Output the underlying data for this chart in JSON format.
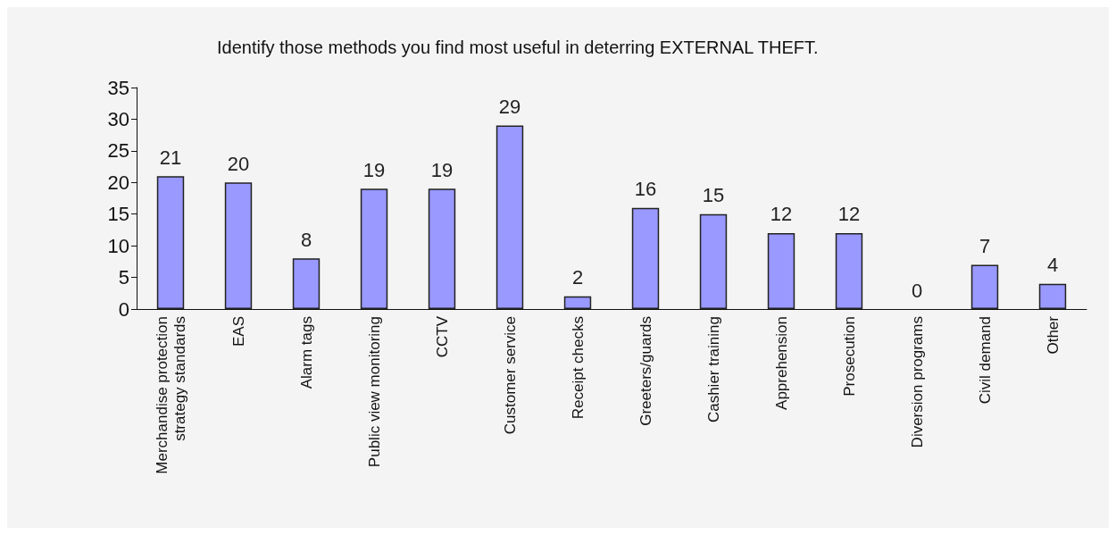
{
  "chart_data": {
    "type": "bar",
    "title": "Identify those methods you find most useful in deterring EXTERNAL THEFT.",
    "categories": [
      "Merchandise protection strategy standards",
      "EAS",
      "Alarm tags",
      "Public view monitoring",
      "CCTV",
      "Customer service",
      "Receipt checks",
      "Greeters/guards",
      "Cashier training",
      "Apprehension",
      "Prosecution",
      "Diversion programs",
      "Civil demand",
      "Other"
    ],
    "values": [
      21,
      20,
      8,
      19,
      19,
      29,
      2,
      16,
      15,
      12,
      12,
      0,
      7,
      4
    ],
    "color": "#9999ff",
    "ylim": [
      0,
      35
    ],
    "yticks": [
      0,
      5,
      10,
      15,
      20,
      25,
      30,
      35
    ],
    "grid": false,
    "data_labels": true
  }
}
